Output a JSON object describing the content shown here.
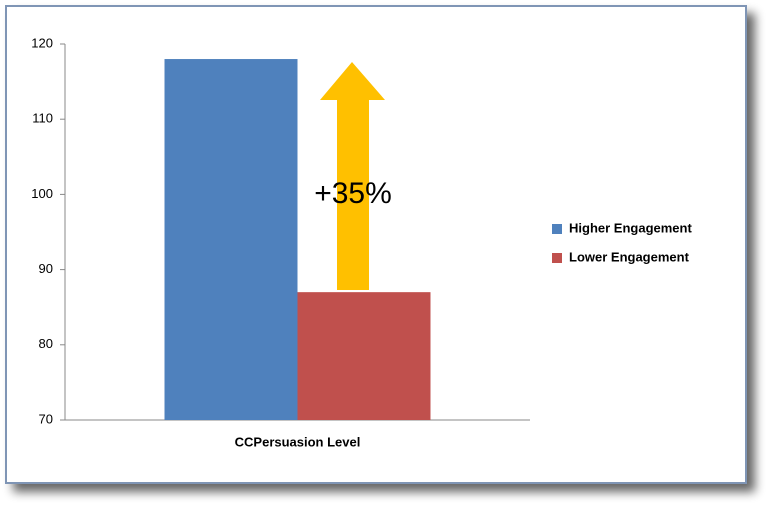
{
  "chart_data": {
    "type": "bar",
    "categories": [
      "CCPersuasion Level"
    ],
    "series": [
      {
        "name": "Higher Engagement",
        "color": "#4f81bd",
        "values": [
          118
        ]
      },
      {
        "name": "Lower Engagement",
        "color": "#c0504d",
        "values": [
          87
        ]
      }
    ],
    "annotation": "+35%",
    "ylim": [
      70,
      120
    ],
    "yticks": [
      70,
      80,
      90,
      100,
      110,
      120
    ],
    "legend": "right"
  }
}
